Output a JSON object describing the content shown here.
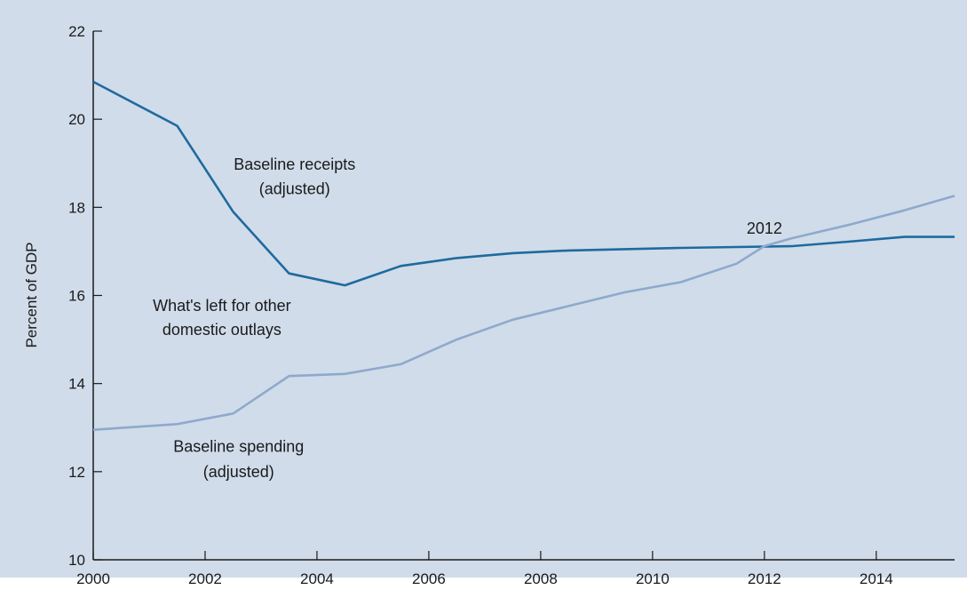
{
  "chart_data": {
    "type": "line",
    "title": "",
    "xlabel": "",
    "ylabel": "Percent of GDP",
    "xlim": [
      2000,
      2015.4
    ],
    "ylim": [
      10,
      22
    ],
    "xticks": [
      "2000",
      "2002",
      "2004",
      "2006",
      "2008",
      "2010",
      "2012",
      "2014"
    ],
    "yticks": [
      "10",
      "12",
      "14",
      "16",
      "18",
      "20",
      "22"
    ],
    "grid": false,
    "legend": "none",
    "series": [
      {
        "name": "Baseline receipts (adjusted)",
        "color": "#1f6a9e",
        "x": [
          2000.0,
          2001.5,
          2002.5,
          2003.5,
          2004.5,
          2005.5,
          2006.5,
          2007.5,
          2008.5,
          2009.5,
          2010.5,
          2011.5,
          2012.5,
          2013.5,
          2014.5,
          2015.4
        ],
        "y": [
          20.85,
          19.85,
          17.9,
          16.5,
          16.23,
          16.67,
          16.85,
          16.96,
          17.02,
          17.05,
          17.08,
          17.1,
          17.12,
          17.22,
          17.33,
          17.33
        ]
      },
      {
        "name": "Baseline spending (adjusted)",
        "color": "#8fa9cc",
        "x": [
          2000.0,
          2001.5,
          2002.5,
          2003.5,
          2004.5,
          2005.5,
          2006.5,
          2007.5,
          2008.5,
          2009.5,
          2010.5,
          2011.5,
          2012.0,
          2012.5,
          2013.5,
          2014.5,
          2015.4
        ],
        "y": [
          12.95,
          13.08,
          13.32,
          14.17,
          14.22,
          14.44,
          15.0,
          15.45,
          15.76,
          16.07,
          16.3,
          16.72,
          17.12,
          17.3,
          17.6,
          17.93,
          18.26
        ]
      }
    ],
    "annotations": [
      {
        "text": "Baseline receipts",
        "x": 2003.6,
        "y": 18.85
      },
      {
        "text": "(adjusted)",
        "x": 2003.6,
        "y": 18.3
      },
      {
        "text": "What's left for other",
        "x": 2002.3,
        "y": 15.65
      },
      {
        "text": "domestic outlays",
        "x": 2002.3,
        "y": 15.1
      },
      {
        "text": "Baseline spending",
        "x": 2002.6,
        "y": 12.45
      },
      {
        "text": "(adjusted)",
        "x": 2002.6,
        "y": 11.88
      },
      {
        "text": "2012",
        "x": 2012.0,
        "y": 17.4
      }
    ],
    "colors": {
      "background": "#d0dcea",
      "axis": "#1a1a1a"
    }
  }
}
